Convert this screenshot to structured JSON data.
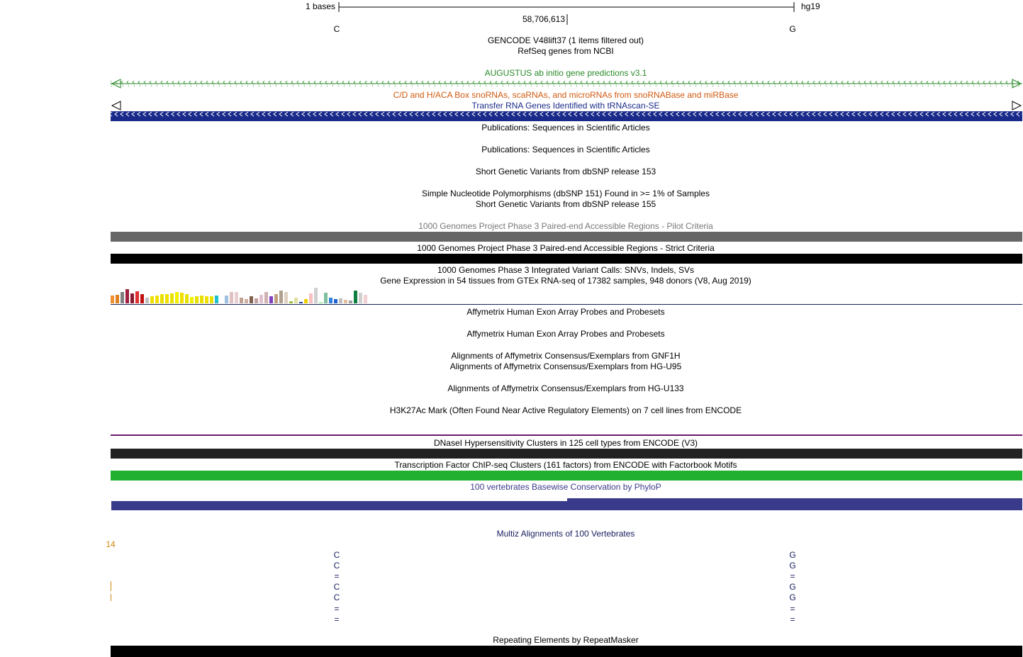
{
  "ruler": {
    "scale": "1 bases",
    "position": "58,706,613",
    "assembly": "hg19",
    "bases": [
      "C",
      "G"
    ]
  },
  "tracks": [
    "GENCODE V48lift37 (1 items filtered out)",
    "RefSeq genes from NCBI",
    "AUGUSTUS ab initio gene predictions v3.1",
    "C/D and H/ACA Box snoRNAs, scaRNAs, and microRNAs from snoRNABase and miRBase",
    "Transfer RNA Genes Identified with tRNAscan-SE",
    "Publications: Sequences in Scientific Articles",
    "Publications: Sequences in Scientific Articles",
    "Short Genetic Variants from dbSNP release 153",
    "Simple Nucleotide Polymorphisms (dbSNP 151) Found in >= 1% of Samples",
    "Short Genetic Variants from dbSNP release 155",
    "1000 Genomes Project Phase 3 Paired-end Accessible Regions - Pilot Criteria",
    "1000 Genomes Project Phase 3 Paired-end Accessible Regions - Strict Criteria",
    "1000 Genomes Phase 3 Integrated Variant Calls: SNVs, Indels, SVs",
    "Gene Expression in 54 tissues from GTEx RNA-seq of 17382 samples, 948 donors (V8, Aug 2019)",
    "Affymetrix Human Exon Array Probes and Probesets",
    "Affymetrix Human Exon Array Probes and Probesets",
    "Alignments of Affymetrix Consensus/Exemplars from GNF1H",
    "Alignments of Affymetrix Consensus/Exemplars from HG-U95",
    "Alignments of Affymetrix Consensus/Exemplars from HG-U133",
    "H3K27Ac Mark (Often Found Near Active Regulatory Elements) on 7 cell lines from ENCODE",
    "DNaseI Hypersensitivity Clusters in 125 cell types from ENCODE (V3)",
    "Transcription Factor ChIP-seq Clusters (161 factors) from ENCODE with Factorbook Motifs",
    "100 vertebrates Basewise Conservation by PhyloP",
    "Multiz Alignments of 100 Vertebrates",
    "Repeating Elements by RepeatMasker"
  ],
  "multiz": {
    "scale": "14",
    "left": [
      "C",
      "C",
      "=",
      "C",
      "C",
      "=",
      "="
    ],
    "right": [
      "G",
      "G",
      "=",
      "G",
      "G",
      "=",
      "="
    ]
  }
}
